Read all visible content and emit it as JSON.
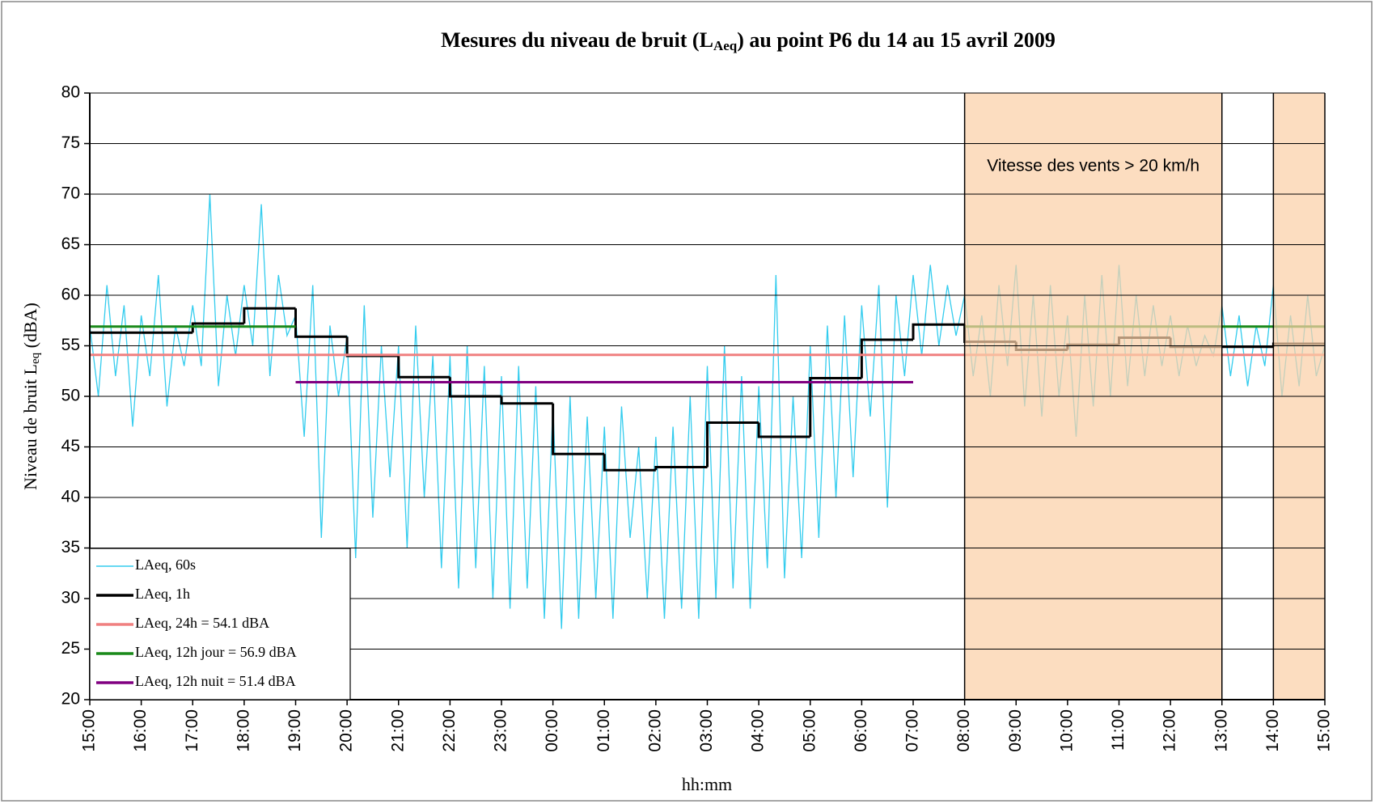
{
  "chart_data": {
    "type": "line",
    "title_parts": [
      "Mesures du niveau de bruit (L",
      "Aeq",
      ") au point P6 du 14 au 15 avril 2009"
    ],
    "y_label_parts": [
      "Niveau de bruit L",
      "eq",
      " (dBA)"
    ],
    "x_label": "hh:mm",
    "annotation": "Vitesse des vents > 20 km/h",
    "shaded_regions": [
      {
        "xlim": [
          1020,
          1320
        ]
      },
      {
        "xlim": [
          1380,
          1440
        ]
      }
    ],
    "xlim": [
      0,
      1440
    ],
    "xticks": [
      {
        "value": 0,
        "label": "15:00"
      },
      {
        "value": 60,
        "label": "16:00"
      },
      {
        "value": 120,
        "label": "17:00"
      },
      {
        "value": 180,
        "label": "18:00"
      },
      {
        "value": 240,
        "label": "19:00"
      },
      {
        "value": 300,
        "label": "20:00"
      },
      {
        "value": 360,
        "label": "21:00"
      },
      {
        "value": 420,
        "label": "22:00"
      },
      {
        "value": 480,
        "label": "23:00"
      },
      {
        "value": 540,
        "label": "00:00"
      },
      {
        "value": 600,
        "label": "01:00"
      },
      {
        "value": 660,
        "label": "02:00"
      },
      {
        "value": 720,
        "label": "03:00"
      },
      {
        "value": 780,
        "label": "04:00"
      },
      {
        "value": 840,
        "label": "05:00"
      },
      {
        "value": 900,
        "label": "06:00"
      },
      {
        "value": 960,
        "label": "07:00"
      },
      {
        "value": 1020,
        "label": "08:00"
      },
      {
        "value": 1080,
        "label": "09:00"
      },
      {
        "value": 1140,
        "label": "10:00"
      },
      {
        "value": 1200,
        "label": "11:00"
      },
      {
        "value": 1260,
        "label": "12:00"
      },
      {
        "value": 1320,
        "label": "13:00"
      },
      {
        "value": 1380,
        "label": "14:00"
      },
      {
        "value": 1440,
        "label": "15:00"
      }
    ],
    "ylim": [
      20,
      80
    ],
    "yticks": [
      20,
      25,
      30,
      35,
      40,
      45,
      50,
      55,
      60,
      65,
      70,
      75,
      80
    ],
    "grid": true,
    "legend": "lower left",
    "series": [
      {
        "name": "LAeq, 60s",
        "color": "#33ccee",
        "x": [
          0,
          10,
          20,
          30,
          40,
          50,
          60,
          70,
          80,
          90,
          100,
          110,
          120,
          130,
          140,
          150,
          160,
          170,
          180,
          190,
          200,
          210,
          220,
          230,
          240,
          250,
          260,
          270,
          280,
          290,
          300,
          310,
          320,
          330,
          340,
          350,
          360,
          370,
          380,
          390,
          400,
          410,
          420,
          430,
          440,
          450,
          460,
          470,
          480,
          490,
          500,
          510,
          520,
          530,
          540,
          550,
          560,
          570,
          580,
          590,
          600,
          610,
          620,
          630,
          640,
          650,
          660,
          670,
          680,
          690,
          700,
          710,
          720,
          730,
          740,
          750,
          760,
          770,
          780,
          790,
          800,
          810,
          820,
          830,
          840,
          850,
          860,
          870,
          880,
          890,
          900,
          910,
          920,
          930,
          940,
          950,
          960,
          970,
          980,
          990,
          1000,
          1010,
          1020,
          1030,
          1040,
          1050,
          1060,
          1070,
          1080,
          1090,
          1100,
          1110,
          1120,
          1130,
          1140,
          1150,
          1160,
          1170,
          1180,
          1190,
          1200,
          1210,
          1220,
          1230,
          1240,
          1250,
          1260,
          1270,
          1280,
          1290,
          1300,
          1310,
          1320,
          1330,
          1340,
          1350,
          1360,
          1370,
          1380,
          1390,
          1400,
          1410,
          1420,
          1430,
          1440
        ],
        "values": [
          57,
          50,
          61,
          52,
          59,
          47,
          58,
          52,
          62,
          49,
          57,
          53,
          59,
          53,
          70,
          51,
          60,
          54,
          61,
          55,
          69,
          52,
          62,
          56,
          58,
          46,
          61,
          36,
          57,
          50,
          56,
          34,
          59,
          38,
          55,
          42,
          55,
          35,
          57,
          40,
          54,
          33,
          54,
          31,
          55,
          33,
          53,
          30,
          52,
          29,
          53,
          31,
          51,
          28,
          49,
          27,
          50,
          28,
          48,
          30,
          47,
          28,
          49,
          36,
          45,
          30,
          46,
          28,
          47,
          29,
          50,
          28,
          53,
          30,
          55,
          31,
          52,
          29,
          51,
          33,
          62,
          32,
          50,
          34,
          55,
          36,
          57,
          40,
          58,
          42,
          59,
          48,
          61,
          39,
          60,
          52,
          62,
          54,
          63,
          55,
          61,
          56,
          60,
          52,
          58,
          50,
          61,
          53,
          63,
          49,
          60,
          48,
          61,
          50,
          58,
          46,
          60,
          49,
          62,
          50,
          63,
          51,
          60,
          52,
          59,
          53,
          58,
          52,
          57,
          53,
          56,
          54,
          59,
          52,
          58,
          51,
          57,
          53,
          61,
          50,
          58,
          51,
          60,
          52,
          55
        ]
      },
      {
        "name": "LAeq, 1h",
        "color": "#000000",
        "step": "post",
        "x": [
          0,
          60,
          120,
          180,
          240,
          300,
          360,
          420,
          480,
          540,
          600,
          660,
          720,
          780,
          840,
          900,
          960,
          1020,
          1080,
          1140,
          1200,
          1260,
          1320,
          1380
        ],
        "values": [
          56.3,
          56.3,
          57.2,
          58.7,
          55.9,
          54.0,
          51.9,
          50.0,
          49.3,
          44.3,
          42.7,
          43.0,
          47.4,
          46.0,
          51.8,
          55.6,
          57.1,
          55.4,
          54.6,
          55.1,
          55.8,
          54.9,
          54.9,
          55.2
        ]
      },
      {
        "name": "LAeq, 24h = 54.1 dBA",
        "color": "#f08080",
        "x": [
          0,
          1440
        ],
        "values": [
          54.1,
          54.1
        ]
      },
      {
        "name": "LAeq, 12h jour = 56.9 dBA",
        "color": "#1a8a1a",
        "x": [
          0,
          240,
          600,
          1020,
          1440
        ],
        "values": [
          56.9,
          56.9,
          null,
          56.9,
          56.9
        ]
      },
      {
        "name": "LAeq, 12h nuit = 51.4 dBA",
        "color": "#800080",
        "x": [
          240,
          960
        ],
        "values": [
          51.4,
          51.4
        ]
      }
    ]
  }
}
